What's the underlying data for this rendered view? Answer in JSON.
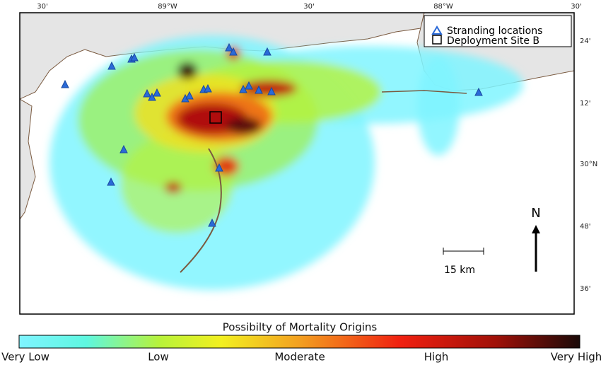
{
  "map": {
    "top_labels": [
      "30'",
      "89°W",
      "30'",
      "88°W",
      "30'"
    ],
    "right_labels": [
      "24'",
      "12'",
      "30°N",
      "48'",
      "36'"
    ],
    "legend": [
      "Stranding locations",
      "Deployment Site B"
    ],
    "scale_bar": "15 km",
    "north": "N"
  },
  "colorbar": {
    "title": "Possibilty of Mortality Origins",
    "labels": [
      "Very Low",
      "Low",
      "Moderate",
      "High",
      "Very High"
    ]
  }
}
